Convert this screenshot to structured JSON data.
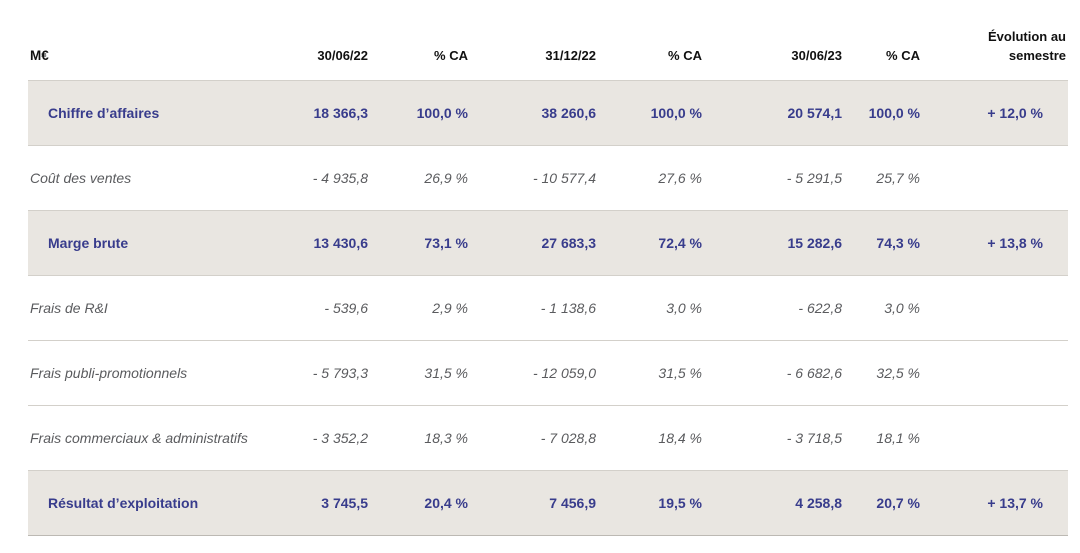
{
  "table": {
    "unit_label": "M€",
    "columns": {
      "c1": "30/06/22",
      "c2": "% CA",
      "c3": "31/12/22",
      "c4": "% CA",
      "c5": "30/06/23",
      "c6": "% CA",
      "c7": "Évolution au semestre"
    },
    "rows": [
      {
        "label": "Chiffre d’affaires",
        "type": "total",
        "values": [
          "18 366,3",
          "100,0 %",
          "38 260,6",
          "100,0 %",
          "20 574,1",
          "100,0 %",
          "+ 12,0 %"
        ]
      },
      {
        "label": "Coût des ventes",
        "type": "expense",
        "values": [
          "- 4 935,8",
          "26,9 %",
          "- 10 577,4",
          "27,6 %",
          "- 5 291,5",
          "25,7 %",
          ""
        ]
      },
      {
        "label": "Marge brute",
        "type": "total",
        "values": [
          "13 430,6",
          "73,1 %",
          "27 683,3",
          "72,4 %",
          "15 282,6",
          "74,3 %",
          "+ 13,8 %"
        ]
      },
      {
        "label": "Frais de R&I",
        "type": "expense",
        "values": [
          "- 539,6",
          "2,9 %",
          "- 1 138,6",
          "3,0 %",
          "- 622,8",
          "3,0 %",
          ""
        ]
      },
      {
        "label": "Frais publi-promotionnels",
        "type": "expense",
        "values": [
          "- 5 793,3",
          "31,5 %",
          "- 12 059,0",
          "31,5 %",
          "- 6 682,6",
          "32,5 %",
          ""
        ]
      },
      {
        "label": "Frais commerciaux & administratifs",
        "type": "expense",
        "values": [
          "- 3 352,2",
          "18,3 %",
          "- 7 028,8",
          "18,4 %",
          "- 3 718,5",
          "18,1 %",
          ""
        ]
      },
      {
        "label": "Résultat d’exploitation",
        "type": "total",
        "values": [
          "3 745,5",
          "20,4 %",
          "7 456,9",
          "19,5 %",
          "4 258,8",
          "20,7 %",
          "+ 13,7 %"
        ]
      }
    ],
    "colors": {
      "accent_navy": "#383c8c",
      "highlight_row_bg": "#e9e6e1",
      "expense_text": "#5a5b5e",
      "header_text": "#111111"
    }
  }
}
